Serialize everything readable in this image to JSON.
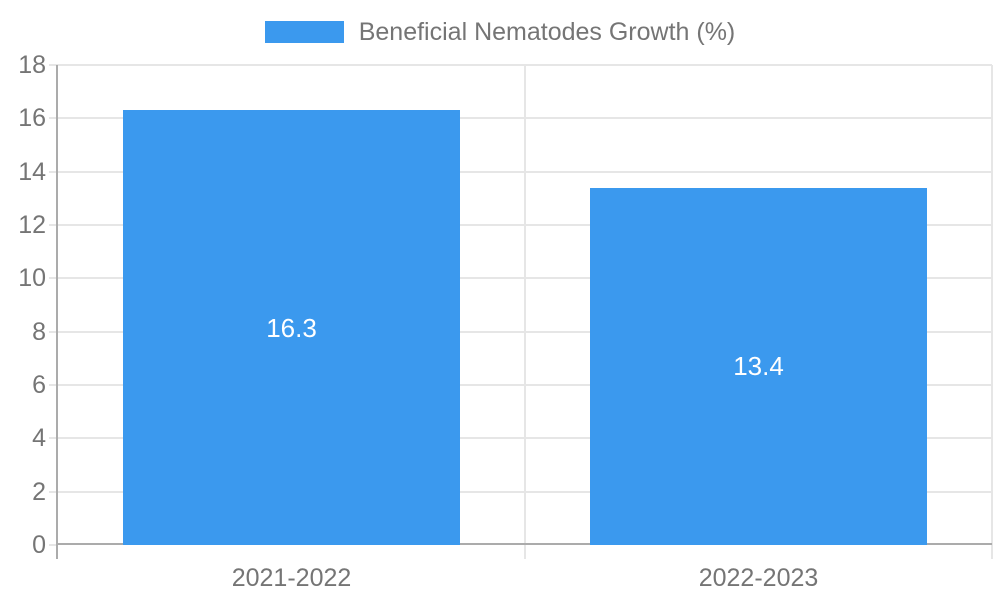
{
  "legend": {
    "label": "Beneficial Nematodes Growth (%)"
  },
  "chart_data": {
    "type": "bar",
    "title": "Beneficial Nematodes Growth (%)",
    "categories": [
      "2021-2022",
      "2022-2023"
    ],
    "series": [
      {
        "name": "Beneficial Nematodes Growth (%)",
        "values": [
          16.3,
          13.4
        ]
      }
    ],
    "data_labels": [
      "16.3",
      "13.4"
    ],
    "xlabel": "",
    "ylabel": "",
    "ylim": [
      0,
      18
    ],
    "ytick_step": 2,
    "yticks": [
      0,
      2,
      4,
      6,
      8,
      10,
      12,
      14,
      16,
      18
    ],
    "grid": true,
    "legend_position": "top-center",
    "colors": {
      "bar": "#3b99ee",
      "bar_label_text": "#ffffff",
      "axis_text": "#757575",
      "gridline": "#e6e6e6",
      "axis_line": "#ababab",
      "background": "#ffffff"
    }
  }
}
